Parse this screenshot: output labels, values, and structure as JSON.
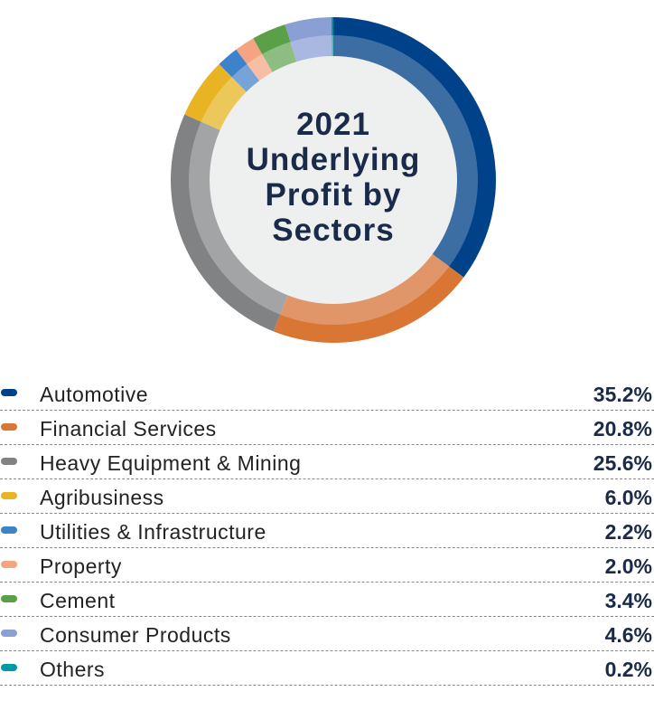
{
  "chart_data": {
    "type": "pie",
    "title": "2021 Underlying Profit by Sectors",
    "legend_position": "bottom",
    "categories": [
      "Automotive",
      "Financial Services",
      "Heavy Equipment & Mining",
      "Agribusiness",
      "Utilities & Infrastructure",
      "Property",
      "Cement",
      "Consumer Products",
      "Others"
    ],
    "values": [
      35.2,
      20.8,
      25.6,
      6.0,
      2.2,
      2.0,
      3.4,
      4.6,
      0.2
    ],
    "value_labels": [
      "35.2%",
      "20.8%",
      "25.6%",
      "6.0%",
      "2.2%",
      "2.0%",
      "3.4%",
      "4.6%",
      "0.2%"
    ],
    "colors": [
      "#00428a",
      "#d97634",
      "#808284",
      "#e8b423",
      "#3f82cc",
      "#f5a481",
      "#5aa048",
      "#8a9fd4",
      "#009aa6"
    ],
    "inner_colors": [
      "#3c6ea3",
      "#e19669",
      "#a2a4a6",
      "#ecc75a",
      "#77a4d8",
      "#f8bea4",
      "#8ebd82",
      "#a9b8e0",
      "#4fb8bf"
    ]
  }
}
